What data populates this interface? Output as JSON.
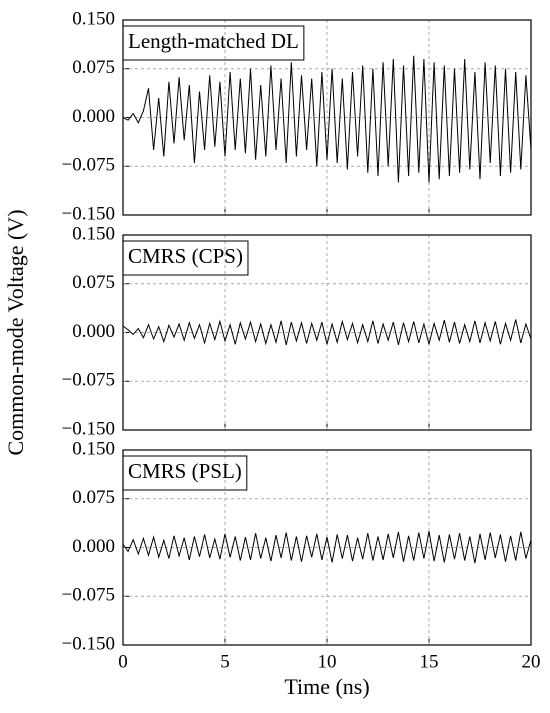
{
  "chart_data": [
    {
      "type": "line",
      "annotation": "Length-matched DL",
      "color": "#000000",
      "grid": true,
      "xlim": [
        0,
        20
      ],
      "ylim": [
        -0.15,
        0.15
      ],
      "yticks": [
        {
          "value": -0.15,
          "label": "−0.150"
        },
        {
          "value": -0.075,
          "label": "−0.075"
        },
        {
          "value": 0,
          "label": "0.000"
        },
        {
          "value": 0.075,
          "label": "0.075"
        },
        {
          "value": 0.15,
          "label": "0.150"
        }
      ],
      "x": [
        0,
        0.25,
        0.5,
        0.75,
        1,
        1.25,
        1.5,
        1.75,
        2,
        2.25,
        2.5,
        2.75,
        3,
        3.25,
        3.5,
        3.75,
        4,
        4.25,
        4.5,
        4.75,
        5,
        5.25,
        5.5,
        5.75,
        6,
        6.25,
        6.5,
        6.75,
        7,
        7.25,
        7.5,
        7.75,
        8,
        8.25,
        8.5,
        8.75,
        9,
        9.25,
        9.5,
        9.75,
        10,
        10.25,
        10.5,
        10.75,
        11,
        11.25,
        11.5,
        11.75,
        12,
        12.25,
        12.5,
        12.75,
        13,
        13.25,
        13.5,
        13.75,
        14,
        14.25,
        14.5,
        14.75,
        15,
        15.25,
        15.5,
        15.75,
        16,
        16.25,
        16.5,
        16.75,
        17,
        17.25,
        17.5,
        17.75,
        18,
        18.25,
        18.5,
        18.75,
        19,
        19.25,
        19.5,
        19.75,
        20
      ],
      "values": [
        0,
        -0.004,
        0.006,
        -0.008,
        0.01,
        0.045,
        -0.05,
        0.03,
        -0.06,
        0.055,
        -0.04,
        0.062,
        -0.035,
        0.05,
        -0.07,
        0.04,
        -0.05,
        0.065,
        -0.045,
        0.055,
        -0.06,
        0.07,
        -0.05,
        0.06,
        -0.055,
        0.075,
        -0.065,
        0.05,
        -0.06,
        0.08,
        -0.05,
        0.06,
        -0.07,
        0.085,
        -0.06,
        0.065,
        -0.05,
        0.06,
        -0.075,
        0.07,
        -0.065,
        0.075,
        -0.07,
        0.06,
        -0.08,
        0.07,
        -0.06,
        0.08,
        -0.085,
        0.075,
        -0.09,
        0.085,
        -0.075,
        0.09,
        -0.1,
        0.08,
        -0.09,
        0.095,
        -0.085,
        0.09,
        -0.1,
        0.085,
        -0.095,
        0.08,
        -0.09,
        0.075,
        -0.085,
        0.09,
        -0.08,
        0.07,
        -0.095,
        0.085,
        -0.07,
        0.08,
        -0.09,
        0.075,
        -0.085,
        0.07,
        -0.08,
        0.065,
        -0.05
      ]
    },
    {
      "type": "line",
      "annotation": "CMRS (CPS)",
      "color": "#000000",
      "grid": true,
      "ylabel": "Common-mode Voltage (V)",
      "xlim": [
        0,
        20
      ],
      "ylim": [
        -0.15,
        0.15
      ],
      "yticks": [
        {
          "value": -0.15,
          "label": "−0.150"
        },
        {
          "value": -0.075,
          "label": "−0.075"
        },
        {
          "value": 0,
          "label": "0.000"
        },
        {
          "value": 0.075,
          "label": "0.075"
        },
        {
          "value": 0.15,
          "label": "0.150"
        }
      ],
      "x": [
        0,
        0.25,
        0.5,
        0.75,
        1,
        1.25,
        1.5,
        1.75,
        2,
        2.25,
        2.5,
        2.75,
        3,
        3.25,
        3.5,
        3.75,
        4,
        4.25,
        4.5,
        4.75,
        5,
        5.25,
        5.5,
        5.75,
        6,
        6.25,
        6.5,
        6.75,
        7,
        7.25,
        7.5,
        7.75,
        8,
        8.25,
        8.5,
        8.75,
        9,
        9.25,
        9.5,
        9.75,
        10,
        10.25,
        10.5,
        10.75,
        11,
        11.25,
        11.5,
        11.75,
        12,
        12.25,
        12.5,
        12.75,
        13,
        13.25,
        13.5,
        13.75,
        14,
        14.25,
        14.5,
        14.75,
        15,
        15.25,
        15.5,
        15.75,
        16,
        16.25,
        16.5,
        16.75,
        17,
        17.25,
        17.5,
        17.75,
        18,
        18.25,
        18.5,
        18.75,
        19,
        19.25,
        19.5,
        19.75,
        20
      ],
      "values": [
        0.01,
        0.004,
        -0.003,
        0.006,
        -0.008,
        0.012,
        -0.01,
        0.009,
        -0.014,
        0.011,
        -0.007,
        0.013,
        -0.012,
        0.015,
        -0.009,
        0.012,
        -0.016,
        0.014,
        -0.011,
        0.017,
        -0.013,
        0.012,
        -0.018,
        0.015,
        -0.01,
        0.016,
        -0.014,
        0.013,
        -0.017,
        0.012,
        -0.015,
        0.018,
        -0.019,
        0.016,
        -0.013,
        0.015,
        -0.017,
        0.014,
        -0.012,
        0.016,
        -0.018,
        0.013,
        -0.015,
        0.017,
        -0.011,
        0.014,
        -0.016,
        0.012,
        -0.014,
        0.018,
        -0.017,
        0.013,
        -0.012,
        0.016,
        -0.019,
        0.015,
        -0.014,
        0.017,
        -0.016,
        0.013,
        -0.018,
        0.014,
        -0.012,
        0.019,
        -0.015,
        0.016,
        -0.017,
        0.012,
        -0.014,
        0.018,
        -0.016,
        0.015,
        -0.013,
        0.017,
        -0.018,
        0.014,
        -0.012,
        0.02,
        -0.016,
        0.013,
        -0.01
      ]
    },
    {
      "type": "line",
      "annotation": "CMRS (PSL)",
      "color": "#000000",
      "grid": true,
      "xlabel": "Time (ns)",
      "xlim": [
        0,
        20
      ],
      "ylim": [
        -0.15,
        0.15
      ],
      "xticks": [
        0,
        5,
        10,
        15,
        20
      ],
      "yticks": [
        {
          "value": -0.15,
          "label": "−0.150"
        },
        {
          "value": -0.075,
          "label": "−0.075"
        },
        {
          "value": 0,
          "label": "0.000"
        },
        {
          "value": 0.075,
          "label": "0.075"
        },
        {
          "value": 0.15,
          "label": "0.150"
        }
      ],
      "x": [
        0,
        0.25,
        0.5,
        0.75,
        1,
        1.25,
        1.5,
        1.75,
        2,
        2.25,
        2.5,
        2.75,
        3,
        3.25,
        3.5,
        3.75,
        4,
        4.25,
        4.5,
        4.75,
        5,
        5.25,
        5.5,
        5.75,
        6,
        6.25,
        6.5,
        6.75,
        7,
        7.25,
        7.5,
        7.75,
        8,
        8.25,
        8.5,
        8.75,
        9,
        9.25,
        9.5,
        9.75,
        10,
        10.25,
        10.5,
        10.75,
        11,
        11.25,
        11.5,
        11.75,
        12,
        12.25,
        12.5,
        12.75,
        13,
        13.25,
        13.5,
        13.75,
        14,
        14.25,
        14.5,
        14.75,
        15,
        15.25,
        15.5,
        15.75,
        16,
        16.25,
        16.5,
        16.75,
        17,
        17.25,
        17.5,
        17.75,
        18,
        18.25,
        18.5,
        18.75,
        19,
        19.25,
        19.5,
        19.75,
        20
      ],
      "values": [
        0.005,
        -0.006,
        0.012,
        -0.01,
        0.014,
        -0.012,
        0.016,
        -0.015,
        0.011,
        -0.017,
        0.018,
        -0.013,
        0.015,
        -0.019,
        0.017,
        -0.014,
        0.02,
        -0.016,
        0.013,
        -0.018,
        0.021,
        -0.015,
        0.017,
        -0.02,
        0.016,
        -0.019,
        0.022,
        -0.017,
        0.015,
        -0.021,
        0.019,
        -0.016,
        0.023,
        -0.02,
        0.017,
        -0.022,
        0.018,
        -0.015,
        0.021,
        -0.019,
        0.016,
        -0.023,
        0.02,
        -0.017,
        0.019,
        -0.021,
        0.015,
        -0.018,
        0.022,
        -0.02,
        0.017,
        -0.019,
        0.021,
        -0.016,
        0.024,
        -0.022,
        0.018,
        -0.02,
        0.023,
        -0.017,
        0.025,
        -0.021,
        0.019,
        -0.023,
        0.02,
        -0.018,
        0.022,
        -0.02,
        0.017,
        -0.024,
        0.021,
        -0.019,
        0.023,
        -0.016,
        0.02,
        -0.022,
        0.018,
        -0.02,
        0.024,
        -0.017,
        0.012
      ]
    }
  ]
}
